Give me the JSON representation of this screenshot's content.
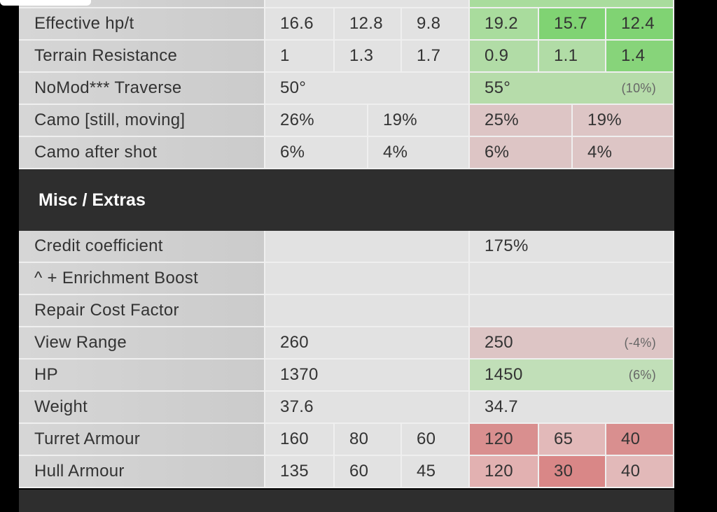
{
  "sections": [
    {
      "rows": [
        {
          "label": "Effective hp/t",
          "left": [
            {
              "text": "16.6"
            },
            {
              "text": "12.8"
            },
            {
              "text": "9.8"
            }
          ],
          "right": [
            {
              "text": "19.2",
              "color": "#a9dc9d"
            },
            {
              "text": "15.7",
              "color": "#80d373"
            },
            {
              "text": "12.4",
              "color": "#80d373"
            }
          ]
        },
        {
          "label": "Terrain Resistance",
          "left": [
            {
              "text": "1"
            },
            {
              "text": "1.3"
            },
            {
              "text": "1.7"
            }
          ],
          "right": [
            {
              "text": "0.9",
              "color": "#b1dca6"
            },
            {
              "text": "1.1",
              "color": "#b1dca6"
            },
            {
              "text": "1.4",
              "color": "#87d47a"
            }
          ]
        },
        {
          "label": "NoMod*** Traverse",
          "left": [
            {
              "text": "50°"
            }
          ],
          "right": [
            {
              "text": "55°",
              "note": "(10%)",
              "color": "#b6dcaa"
            }
          ]
        },
        {
          "label": "Camo [still, moving]",
          "left": [
            {
              "text": "26%"
            },
            {
              "text": "19%"
            }
          ],
          "right": [
            {
              "text": "25%",
              "color": "#ddc5c5"
            },
            {
              "text": "19%",
              "color": "#ddc5c5"
            }
          ]
        },
        {
          "label": "Camo after shot",
          "left": [
            {
              "text": "6%"
            },
            {
              "text": "4%"
            }
          ],
          "right": [
            {
              "text": "6%",
              "color": "#ddc5c5"
            },
            {
              "text": "4%",
              "color": "#ddc5c5"
            }
          ]
        }
      ]
    },
    {
      "title": "Misc / Extras",
      "rows": [
        {
          "label": "Credit coefficient",
          "left": [],
          "right": [
            {
              "text": "175%"
            }
          ]
        },
        {
          "label": "^ + Enrichment Boost",
          "left": [],
          "right": []
        },
        {
          "label": "Repair Cost Factor",
          "left": [],
          "right": []
        },
        {
          "label": "View Range",
          "left": [
            {
              "text": "260"
            }
          ],
          "right": [
            {
              "text": "250",
              "note": "(-4%)",
              "color": "#ddc5c5"
            }
          ]
        },
        {
          "label": "HP",
          "left": [
            {
              "text": "1370"
            }
          ],
          "right": [
            {
              "text": "1450",
              "note": "(6%)",
              "color": "#c1dfb8"
            }
          ]
        },
        {
          "label": "Weight",
          "left": [
            {
              "text": "37.6"
            }
          ],
          "right": [
            {
              "text": "34.7"
            }
          ]
        },
        {
          "label": "Turret Armour",
          "left": [
            {
              "text": "160"
            },
            {
              "text": "80"
            },
            {
              "text": "60"
            }
          ],
          "right": [
            {
              "text": "120",
              "color": "#d98f8f"
            },
            {
              "text": "65",
              "color": "#e2b9b9"
            },
            {
              "text": "40",
              "color": "#d98f8f"
            }
          ]
        },
        {
          "label": "Hull Armour",
          "left": [
            {
              "text": "135"
            },
            {
              "text": "60"
            },
            {
              "text": "45"
            }
          ],
          "right": [
            {
              "text": "120",
              "color": "#e2b1b1"
            },
            {
              "text": "30",
              "color": "#d98787"
            },
            {
              "text": "40",
              "color": "#e2b9b9"
            }
          ]
        }
      ]
    }
  ]
}
